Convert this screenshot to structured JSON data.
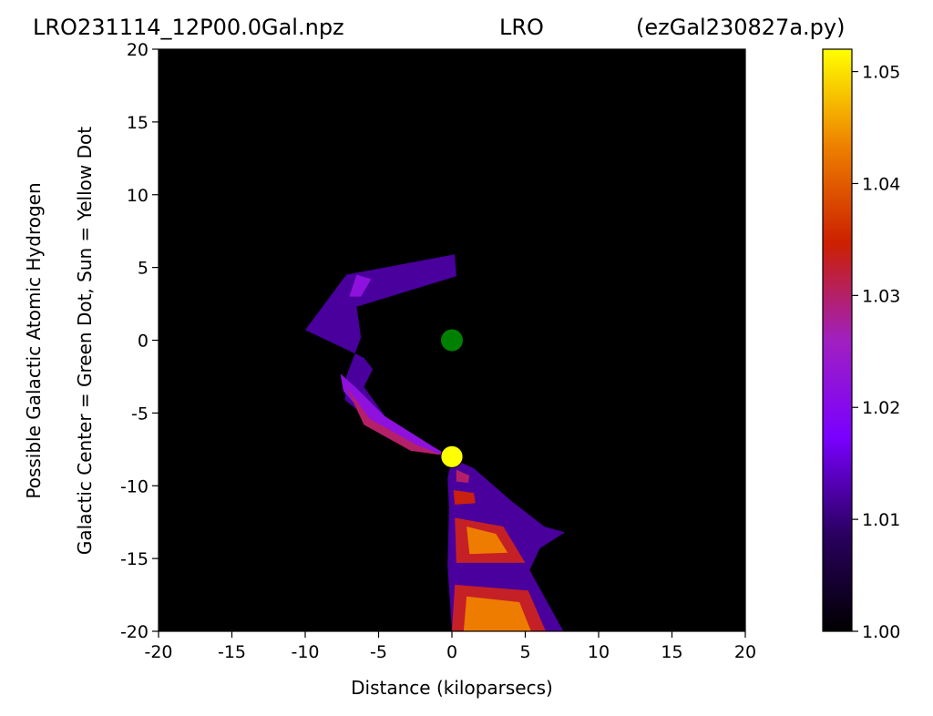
{
  "title": {
    "left": "LRO231114_12P00.0Gal.npz",
    "center": "LRO",
    "right": "(ezGal230827a.py)"
  },
  "colors": {
    "background": "#000000",
    "galactic_center_dot": "#008000",
    "sun_dot": "#ffff00",
    "colormap": [
      "#000000",
      "#2a0060",
      "#7a00ff",
      "#a020c0",
      "#cc2000",
      "#ee8000",
      "#ffff00"
    ]
  },
  "chart_data": {
    "type": "heatmap",
    "xlabel": "Distance (kiloparsecs)",
    "ylabel_lines": [
      "Possible Galactic Atomic Hydrogen",
      "Galactic Center = Green Dot, Sun = Yellow Dot"
    ],
    "xlim": [
      -20,
      20
    ],
    "ylim": [
      -20,
      20
    ],
    "x_ticks": [
      -20,
      -15,
      -10,
      -5,
      0,
      5,
      10,
      15,
      20
    ],
    "y_ticks": [
      -20,
      -15,
      -10,
      -5,
      0,
      5,
      10,
      15,
      20
    ],
    "x_tick_labels": [
      "-20",
      "-15",
      "-10",
      "-5",
      "0",
      "5",
      "10",
      "15",
      "20"
    ],
    "y_tick_labels": [
      "-20",
      "-15",
      "-10",
      "-5",
      "0",
      "5",
      "10",
      "15",
      "20"
    ],
    "colorbar": {
      "range": [
        1.0,
        1.052
      ],
      "ticks": [
        1.0,
        1.01,
        1.02,
        1.03,
        1.04,
        1.05
      ],
      "tick_labels": [
        "1.00",
        "1.01",
        "1.02",
        "1.03",
        "1.04",
        "1.05"
      ]
    },
    "markers": [
      {
        "x": 0,
        "y": 0,
        "color": "#008000"
      },
      {
        "x": 0,
        "y": -8,
        "color": "#ffff00"
      }
    ],
    "regions": [
      {
        "points": [
          [
            -10,
            0.7
          ],
          [
            -7.2,
            4.5
          ],
          [
            0.2,
            5.9
          ],
          [
            0.3,
            4.4
          ],
          [
            -6.5,
            2.3
          ],
          [
            -6.2,
            0.2
          ],
          [
            -7.2,
            -2.5
          ],
          [
            -7.3,
            -4.1
          ],
          [
            -5.2,
            -5.8
          ],
          [
            -0.8,
            -7.7
          ],
          [
            -0.2,
            -7.9
          ],
          [
            -1.2,
            -7.5
          ],
          [
            -4.0,
            -6.0
          ],
          [
            -6.0,
            -3.2
          ],
          [
            -5.4,
            -2.0
          ],
          [
            -6.0,
            -1.2
          ]
        ],
        "value": 1.012
      },
      {
        "points": [
          [
            -7.6,
            -2.3
          ],
          [
            -6.6,
            -3.2
          ],
          [
            -4.6,
            -5.2
          ],
          [
            -1.3,
            -7.3
          ],
          [
            -0.3,
            -7.9
          ],
          [
            -2.0,
            -7.6
          ],
          [
            -5.2,
            -6.0
          ],
          [
            -7.4,
            -3.5
          ]
        ],
        "value": 1.022
      },
      {
        "points": [
          [
            -7.2,
            -3.2
          ],
          [
            -5.6,
            -5.4
          ],
          [
            -2.4,
            -7.2
          ],
          [
            -0.6,
            -7.9
          ],
          [
            -2.8,
            -7.6
          ],
          [
            -6.0,
            -5.8
          ]
        ],
        "value": 1.03
      },
      {
        "points": [
          [
            -7.0,
            3.0
          ],
          [
            -6.5,
            4.5
          ],
          [
            -5.5,
            4.2
          ],
          [
            -6.2,
            3.0
          ]
        ],
        "value": 1.022
      },
      {
        "points": [
          [
            0,
            -8.1
          ],
          [
            1.5,
            -8.8
          ],
          [
            4.0,
            -11.0
          ],
          [
            6.3,
            -12.8
          ],
          [
            7.7,
            -13.2
          ],
          [
            6.0,
            -14.3
          ],
          [
            5.3,
            -15.8
          ],
          [
            7.6,
            -20
          ],
          [
            0,
            -20
          ],
          [
            -0.3,
            -15.5
          ],
          [
            -0.2,
            -11.5
          ],
          [
            -0.3,
            -9.5
          ]
        ],
        "value": 1.012
      },
      {
        "points": [
          [
            0.2,
            -12.2
          ],
          [
            3.5,
            -12.8
          ],
          [
            5.0,
            -15.3
          ],
          [
            0.3,
            -15.3
          ]
        ],
        "value": 1.033
      },
      {
        "points": [
          [
            1.0,
            -12.8
          ],
          [
            3.0,
            -13.3
          ],
          [
            3.8,
            -14.6
          ],
          [
            1.2,
            -14.7
          ]
        ],
        "value": 1.043
      },
      {
        "points": [
          [
            0.2,
            -16.8
          ],
          [
            5.2,
            -17.2
          ],
          [
            6.4,
            -20
          ],
          [
            0,
            -20
          ]
        ],
        "value": 1.033
      },
      {
        "points": [
          [
            1.0,
            -17.6
          ],
          [
            4.6,
            -18.0
          ],
          [
            5.4,
            -20
          ],
          [
            0.8,
            -20
          ]
        ],
        "value": 1.043
      },
      {
        "points": [
          [
            0.1,
            -10.3
          ],
          [
            1.5,
            -10.5
          ],
          [
            1.6,
            -11.2
          ],
          [
            0.2,
            -11.3
          ]
        ],
        "value": 1.034
      },
      {
        "points": [
          [
            0.3,
            -8.9
          ],
          [
            1.2,
            -9.3
          ],
          [
            1.1,
            -9.8
          ],
          [
            0.3,
            -9.7
          ]
        ],
        "value": 1.03
      }
    ]
  }
}
